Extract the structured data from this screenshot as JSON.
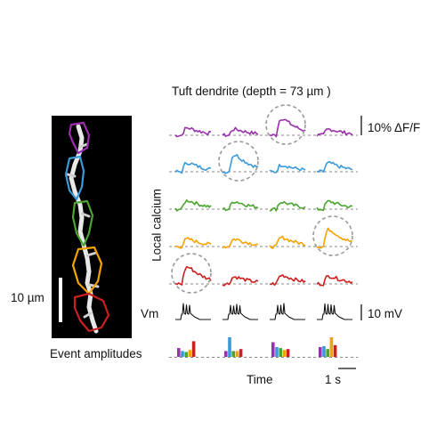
{
  "title": "Tuft dendrite (depth = 73 µm )",
  "y_axis_label": "Local calcium",
  "scale_dff": "10% ΔF/F",
  "vm_label": "Vm",
  "scale_vm": "10 mV",
  "amplitudes_label": "Event amplitudes",
  "time_label": "Time",
  "time_scale": "1 s",
  "micro_scale": "10 µm",
  "colors": {
    "rois": [
      "#9b2fae",
      "#3a9ad9",
      "#4aa52e",
      "#f5a300",
      "#cc1f1f"
    ],
    "trace": "#111111",
    "circle": "#9a9a9a"
  },
  "highlighted_events": [
    {
      "roi": 0,
      "event": 2
    },
    {
      "roi": 1,
      "event": 1
    },
    {
      "roi": 3,
      "event": 3
    },
    {
      "roi": 4,
      "event": 0
    }
  ],
  "event_amplitudes": [
    [
      0.45,
      0.3,
      0.25,
      0.35,
      0.8
    ],
    [
      0.3,
      1.0,
      0.3,
      0.3,
      0.4
    ],
    [
      0.75,
      0.5,
      0.45,
      0.35,
      0.4
    ],
    [
      0.5,
      0.55,
      0.4,
      1.0,
      0.6
    ]
  ]
}
